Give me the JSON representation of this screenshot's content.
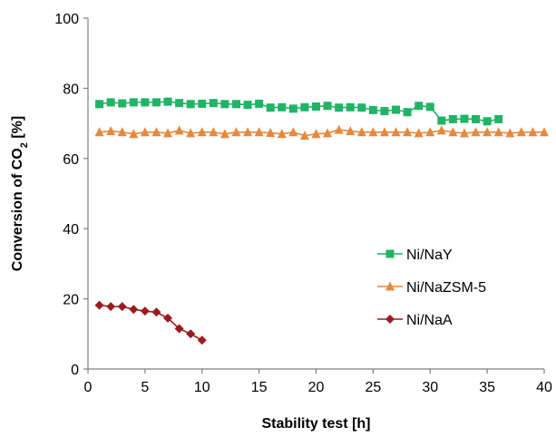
{
  "chart_data": {
    "type": "line",
    "xlabel": "Stability test [h]",
    "ylabel": {
      "main": "Conversion of CO",
      "subscript": "2",
      "suffix": " [%]"
    },
    "xlim": [
      0,
      40
    ],
    "ylim": [
      0,
      100
    ],
    "x_ticks": [
      0,
      5,
      10,
      15,
      20,
      25,
      30,
      35,
      40
    ],
    "y_ticks": [
      0,
      20,
      40,
      60,
      80,
      100
    ],
    "grid": false,
    "legend_position": "center-right",
    "series": [
      {
        "name": "Ni/NaY",
        "marker": "square",
        "color": "#1fb466",
        "x": [
          1,
          2,
          3,
          4,
          5,
          6,
          7,
          8,
          9,
          10,
          11,
          12,
          13,
          14,
          15,
          16,
          17,
          18,
          19,
          20,
          21,
          22,
          23,
          24,
          25,
          26,
          27,
          28,
          29,
          30,
          31,
          32,
          33,
          34,
          35,
          36
        ],
        "values": [
          75.5,
          76,
          75.7,
          76,
          76,
          76,
          76.2,
          75.8,
          75.5,
          75.6,
          75.8,
          75.5,
          75.5,
          75.3,
          75.6,
          74.5,
          74.6,
          74.2,
          74.6,
          74.8,
          75,
          74.5,
          74.6,
          74.5,
          73.8,
          73.5,
          73.9,
          73.2,
          75,
          74.7,
          70.8,
          71.2,
          71.3,
          71.2,
          70.6,
          71.2
        ]
      },
      {
        "name": "Ni/NaZSM-5",
        "marker": "triangle",
        "color": "#e6883e",
        "x": [
          1,
          2,
          3,
          4,
          5,
          6,
          7,
          8,
          9,
          10,
          11,
          12,
          13,
          14,
          15,
          16,
          17,
          18,
          19,
          20,
          21,
          22,
          23,
          24,
          25,
          26,
          27,
          28,
          29,
          30,
          31,
          32,
          33,
          34,
          35,
          36,
          37,
          38,
          39,
          40
        ],
        "values": [
          67.5,
          67.8,
          67.5,
          67,
          67.5,
          67.5,
          67.2,
          68,
          67.2,
          67.5,
          67.5,
          67,
          67.5,
          67.5,
          67.5,
          67.3,
          67,
          67.5,
          66.5,
          67,
          67.2,
          68.2,
          67.8,
          67.5,
          67.5,
          67.5,
          67.5,
          67.5,
          67.2,
          67.5,
          68,
          67.5,
          67.2,
          67.5,
          67.5,
          67.5,
          67.2,
          67.5,
          67.5,
          67.5
        ]
      },
      {
        "name": "Ni/NaA",
        "marker": "diamond",
        "color": "#9b1b1e",
        "x": [
          1,
          2,
          3,
          4,
          5,
          6,
          7,
          8,
          9,
          10
        ],
        "values": [
          18.2,
          17.8,
          17.8,
          17,
          16.5,
          16.2,
          14.5,
          11.5,
          10,
          8.2
        ]
      }
    ]
  }
}
